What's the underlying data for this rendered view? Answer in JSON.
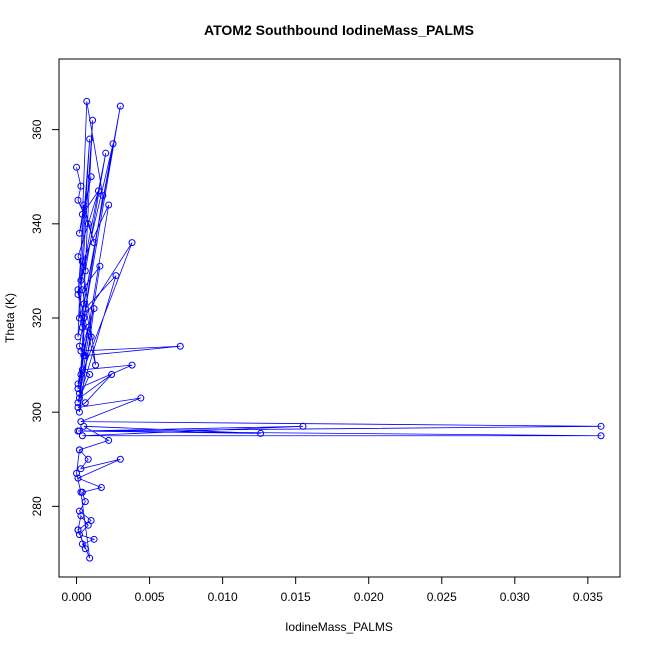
{
  "chart_data": {
    "type": "scatter",
    "title": "ATOM2 Southbound IodineMass_PALMS",
    "xlabel": "IodineMass_PALMS",
    "ylabel": "Theta (K)",
    "xlim": [
      -0.0012,
      0.0372
    ],
    "ylim": [
      265,
      375
    ],
    "x_ticks": [
      0.0,
      0.005,
      0.01,
      0.015,
      0.02,
      0.025,
      0.03,
      0.035
    ],
    "x_tick_labels": [
      "0.000",
      "0.005",
      "0.010",
      "0.015",
      "0.020",
      "0.025",
      "0.030",
      "0.035"
    ],
    "y_ticks": [
      280,
      300,
      320,
      340,
      360
    ],
    "y_tick_labels": [
      "280",
      "300",
      "320",
      "340",
      "360"
    ],
    "grid": false,
    "marker": "open-circle",
    "connected": true,
    "color": "#0000ff",
    "series": [
      {
        "x": [
          0.0,
          0.0003,
          0.0001,
          0.0008,
          0.0012,
          0.0005,
          0.0002,
          0.001,
          0.0004,
          0.0015,
          0.0001,
          0.0006,
          0.002,
          0.0003,
          0.0009,
          0.0001,
          0.0025,
          0.0005,
          0.0002,
          0.0011,
          0.0004,
          0.003,
          0.0001,
          0.0007,
          0.0018,
          0.0002,
          0.0006,
          0.0001,
          0.0013,
          0.0004,
          0.0022,
          0.0003,
          0.0008,
          0.0001,
          0.0038,
          0.0005,
          0.0002,
          0.0016,
          0.0004,
          0.001,
          0.0001,
          0.0027,
          0.0006,
          0.0002,
          0.0012,
          0.0003,
          0.0071,
          0.0005,
          0.0001,
          0.0038,
          0.0004,
          0.0009,
          0.0002,
          0.0024,
          0.0006,
          0.0001,
          0.0044,
          0.0003,
          0.0359,
          0.0002,
          0.0155,
          0.0004,
          0.0359,
          0.0001,
          0.0126,
          0.0005,
          0.0022,
          0.0002,
          0.0008,
          0.0003,
          0.003,
          0.0001,
          0.0017,
          0.0004,
          0.0006,
          0.0002,
          0.001,
          0.0001,
          0.0003,
          0.0008,
          0.0002,
          0.0012,
          0.0004,
          0.0006,
          0.0001,
          0.0009,
          0.0003,
          0.0,
          0.0002
        ],
        "y": [
          352,
          348,
          345,
          340,
          336,
          344,
          338,
          350,
          342,
          347,
          333,
          330,
          355,
          328,
          358,
          325,
          357,
          323,
          320,
          362,
          318,
          365,
          316,
          366,
          346,
          314,
          312,
          326,
          310,
          332,
          344,
          308,
          318,
          306,
          336,
          320,
          304,
          331,
          326,
          316,
          302,
          329,
          322,
          300,
          322,
          313,
          314,
          312,
          305,
          310,
          309,
          308,
          303,
          308,
          302,
          301,
          303,
          298,
          297,
          296,
          297,
          295,
          295,
          296,
          295.5,
          297,
          294,
          292,
          290,
          288,
          290,
          286,
          284,
          283,
          281,
          279,
          277,
          275,
          278,
          276,
          274,
          273,
          272,
          271,
          275,
          269,
          283,
          287,
          292
        ]
      }
    ]
  }
}
